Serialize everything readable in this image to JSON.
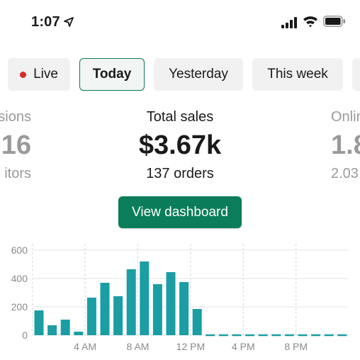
{
  "status_bar": {
    "time": "1:07",
    "icons": [
      "location-arrow-icon",
      "cellular-signal-icon",
      "wifi-icon",
      "battery-icon"
    ]
  },
  "tabs": [
    {
      "label": "Live",
      "has_dot": true,
      "dot_color": "#d62c2c"
    },
    {
      "label": "Today",
      "selected": true
    },
    {
      "label": "Yesterday"
    },
    {
      "label": "This week"
    },
    {
      "label": ""
    }
  ],
  "metrics": {
    "left": {
      "label": "sions",
      "value": "16",
      "sub": "itors"
    },
    "center": {
      "label": "Total sales",
      "value": "$3.67k",
      "sub": "137 orders"
    },
    "right": {
      "label": "Onlin",
      "value": "1.8",
      "sub": "2.03"
    }
  },
  "view_button": {
    "label": "View dashboard"
  },
  "colors": {
    "accent": "#0b7d5b",
    "bar": "#1a9ea3",
    "grid": "#e3e3e3",
    "muted_text": "#9a9a9a"
  },
  "chart_data": {
    "type": "bar",
    "y_ticks": [
      "600",
      "400",
      "200",
      "0"
    ],
    "ylim": [
      0,
      600
    ],
    "x_tick_labels": [
      "4 AM",
      "8 AM",
      "12 PM",
      "4 PM",
      "8 PM"
    ],
    "x_tick_hours": [
      4,
      8,
      12,
      16,
      20
    ],
    "hours": [
      0,
      1,
      2,
      3,
      4,
      5,
      6,
      7,
      8,
      9,
      10,
      11,
      12,
      13,
      14,
      15,
      16,
      17,
      18,
      19,
      20,
      21,
      22,
      23
    ],
    "values": [
      175,
      70,
      110,
      25,
      265,
      370,
      275,
      465,
      520,
      360,
      445,
      375,
      185,
      0,
      0,
      0,
      0,
      0,
      0,
      0,
      0,
      0,
      0,
      0
    ],
    "future_from_hour": 13,
    "grid": true
  }
}
